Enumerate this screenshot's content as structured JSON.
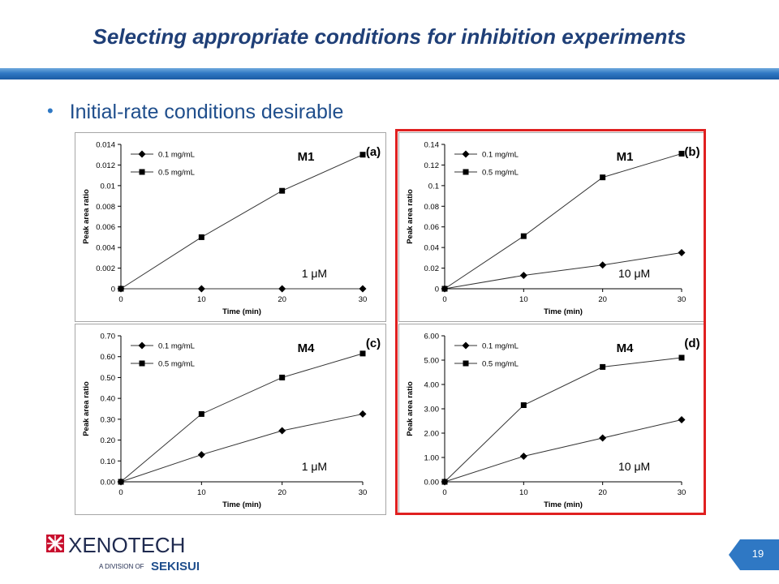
{
  "slide": {
    "title": "Selecting appropriate conditions for inhibition experiments",
    "bullet": "Initial-rate conditions desirable",
    "page_number": "19",
    "colors": {
      "title": "#1f3f77",
      "bar": "#2f78c4",
      "highlight": "#e02020",
      "logo_red": "#c8102e",
      "logo_blue": "#1f4e8c"
    }
  },
  "logo": {
    "name": "XENOTECH",
    "tagline": "A DIVISION OF",
    "parent": "SEKISUI"
  },
  "chart_data": [
    {
      "id": "a",
      "type": "line",
      "panel_label": "(a)",
      "metabolite": "M1",
      "annotation": "1 μM",
      "xlabel": "Time (min)",
      "ylabel": "Peak area ratio",
      "x": [
        0,
        10,
        20,
        30
      ],
      "xticks": [
        "0",
        "10",
        "20",
        "30"
      ],
      "ylim": [
        0,
        0.014
      ],
      "yticks": [
        "0",
        "0.002",
        "0.004",
        "0.006",
        "0.008",
        "0.01",
        "0.012",
        "0.014"
      ],
      "legend_position": "top-left",
      "series": [
        {
          "name": "0.1 mg/mL",
          "marker": "diamond",
          "values": [
            0,
            0,
            0,
            0
          ]
        },
        {
          "name": "0.5 mg/mL",
          "marker": "square",
          "values": [
            0,
            0.005,
            0.0095,
            0.013
          ]
        }
      ]
    },
    {
      "id": "b",
      "type": "line",
      "panel_label": "(b)",
      "metabolite": "M1",
      "annotation": "10 μM",
      "xlabel": "Time (min)",
      "ylabel": "Peak area ratio",
      "x": [
        0,
        10,
        20,
        30
      ],
      "xticks": [
        "0",
        "10",
        "20",
        "30"
      ],
      "ylim": [
        0,
        0.14
      ],
      "yticks": [
        "0",
        "0.02",
        "0.04",
        "0.06",
        "0.08",
        "0.1",
        "0.12",
        "0.14"
      ],
      "legend_position": "top-left",
      "series": [
        {
          "name": "0.1 mg/mL",
          "marker": "diamond",
          "values": [
            0,
            0.013,
            0.023,
            0.035
          ]
        },
        {
          "name": "0.5 mg/mL",
          "marker": "square",
          "values": [
            0,
            0.051,
            0.108,
            0.131
          ]
        }
      ]
    },
    {
      "id": "c",
      "type": "line",
      "panel_label": "(c)",
      "metabolite": "M4",
      "annotation": "1 μM",
      "xlabel": "Time (min)",
      "ylabel": "Peak area ratio",
      "x": [
        0,
        10,
        20,
        30
      ],
      "xticks": [
        "0",
        "10",
        "20",
        "30"
      ],
      "ylim": [
        0,
        0.7
      ],
      "yticks": [
        "0.00",
        "0.10",
        "0.20",
        "0.30",
        "0.40",
        "0.50",
        "0.60",
        "0.70"
      ],
      "legend_position": "top-left",
      "series": [
        {
          "name": "0.1 mg/mL",
          "marker": "diamond",
          "values": [
            0,
            0.13,
            0.245,
            0.325
          ]
        },
        {
          "name": "0.5 mg/mL",
          "marker": "square",
          "values": [
            0,
            0.325,
            0.5,
            0.615
          ]
        }
      ]
    },
    {
      "id": "d",
      "type": "line",
      "panel_label": "(d)",
      "metabolite": "M4",
      "annotation": "10 μM",
      "xlabel": "Time (min)",
      "ylabel": "Peak area ratio",
      "x": [
        0,
        10,
        20,
        30
      ],
      "xticks": [
        "0",
        "10",
        "20",
        "30"
      ],
      "ylim": [
        0,
        6
      ],
      "yticks": [
        "0.00",
        "1.00",
        "2.00",
        "3.00",
        "4.00",
        "5.00",
        "6.00"
      ],
      "legend_position": "top-left",
      "series": [
        {
          "name": "0.1 mg/mL",
          "marker": "diamond",
          "values": [
            0,
            1.05,
            1.8,
            2.55
          ]
        },
        {
          "name": "0.5 mg/mL",
          "marker": "square",
          "values": [
            0,
            3.15,
            4.72,
            5.1
          ]
        }
      ]
    }
  ]
}
